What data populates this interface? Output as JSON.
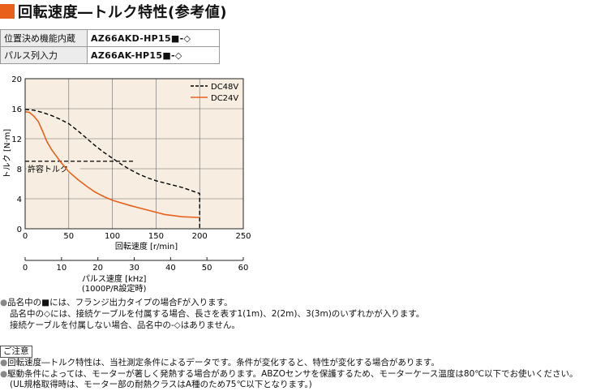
{
  "title": "回転速度―トルク特性(参考値)",
  "models": [
    {
      "label": "位置決め機能内蔵",
      "model": "AZ66AKD-HP15■-◇"
    },
    {
      "label": "パルス列入力",
      "model": "AZ66AK-HP15■-◇"
    }
  ],
  "chart_data": {
    "type": "line",
    "xlabel": "回転速度 [r/min]",
    "ylabel": "トルク [N·m]",
    "xlim": [
      0,
      250
    ],
    "ylim": [
      0,
      20
    ],
    "x_ticks": [
      "0",
      "50",
      "100",
      "150",
      "200",
      "250"
    ],
    "y_ticks": [
      "0",
      "4",
      "8",
      "12",
      "16",
      "20"
    ],
    "grid": true,
    "legend_position": "top-right",
    "secondary_axis": {
      "label_lines": [
        "パルス速度 [kHz]",
        "(1000P/R設定時)"
      ],
      "ticks": [
        "0",
        "10",
        "20",
        "30",
        "40",
        "50",
        "60"
      ],
      "range": [
        0,
        60
      ]
    },
    "series": [
      {
        "name": "DC48V",
        "style": "dashed",
        "color": "#000000",
        "x": [
          0,
          10,
          20,
          30,
          40,
          50,
          60,
          70,
          80,
          90,
          100,
          110,
          120,
          130,
          140,
          150,
          160,
          170,
          180,
          190,
          200,
          200
        ],
        "y": [
          15.9,
          15.8,
          15.5,
          15.1,
          14.6,
          14.0,
          13.1,
          12.1,
          11.1,
          10.2,
          9.4,
          8.6,
          7.9,
          7.3,
          6.8,
          6.4,
          6.1,
          5.8,
          5.5,
          5.1,
          4.7,
          0
        ]
      },
      {
        "name": "DC24V",
        "style": "solid",
        "color": "#e8611c",
        "x": [
          0,
          5,
          10,
          15,
          20,
          25,
          30,
          40,
          50,
          60,
          70,
          80,
          90,
          100,
          120,
          140,
          160,
          180,
          200
        ],
        "y": [
          15.6,
          15.5,
          15.0,
          14.3,
          13.0,
          11.6,
          10.6,
          9.0,
          7.6,
          6.6,
          5.7,
          4.9,
          4.3,
          3.8,
          3.1,
          2.5,
          1.9,
          1.6,
          1.5
        ]
      }
    ],
    "annotation": {
      "label": "許容トルク",
      "value": 9,
      "x_end": 125
    }
  },
  "notes": [
    "品名中の■には、フランジ出力タイプの場合Fが入ります。",
    "品名中の◇には、接続ケーブルを付属する場合、長さを表す1(1m)、2(2m)、3(3m)のいずれかが入ります。",
    "接続ケーブルを付属しない場合、品名中の-◇はありません。"
  ],
  "caution_label": "ご注意",
  "cautions": [
    "回転速度―トルク特性は、当社測定条件によるデータです。条件が変化すると、特性が変化する場合があります。",
    "駆動条件によっては、モーターが著しく発熱する場合があります。ABZOセンサを保護するため、モーターケース温度は80℃以下でお使いください。",
    "(UL規格取得時は、モーター部の耐熱クラスはA種のため75℃以下となります。)"
  ],
  "bullet": "●"
}
